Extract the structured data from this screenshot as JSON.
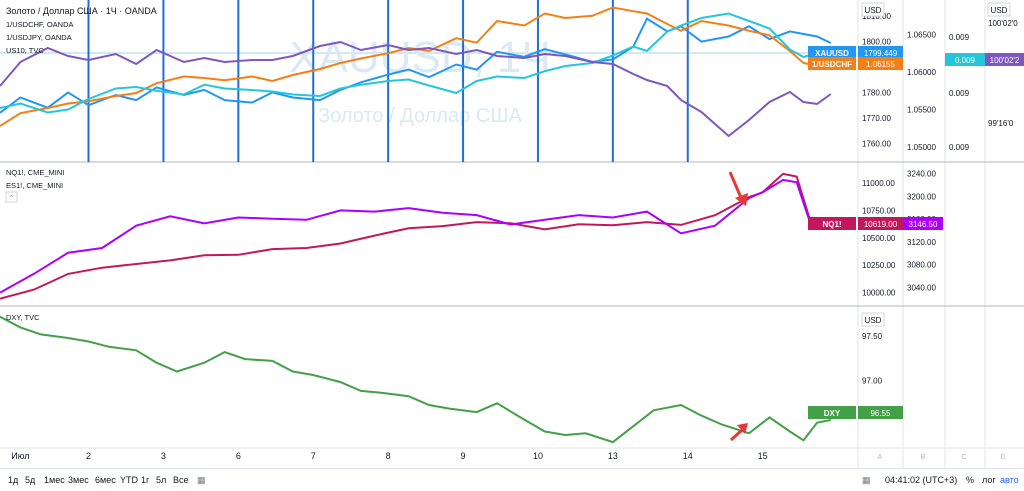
{
  "chart_data": [
    {
      "type": "line",
      "pane": "top",
      "title": "",
      "legend": [
        "Золото / Доллар США · 1Ч · OANDA",
        "1/USDCHF, OANDA",
        "1/USDJPY, OANDA",
        "US10, TVC"
      ],
      "watermark": "XAUUSD, 1Ч",
      "watermark_sub": "Золото / Доллар США",
      "axes": [
        {
          "label": "USD",
          "ticks": [
            "1810.00",
            "1800.00",
            "1790.00",
            "1780.00",
            "1770.00",
            "1760.00"
          ],
          "ylim": [
            1755,
            1814
          ]
        },
        {
          "ticks": [
            "1.06500",
            "1.06000",
            "1.05500",
            "1.05000"
          ],
          "ylim": [
            1.0488,
            1.0688
          ]
        },
        {
          "ticks": [
            "0.009",
            "0.009",
            "0.009"
          ]
        },
        {
          "label": "USD",
          "ticks": [
            "100'02'0",
            "99'16'0"
          ]
        }
      ],
      "series": [
        {
          "name": "Золото / Доллар США",
          "color": "#2196f3",
          "x": [
            0,
            0.3,
            0.7,
            1,
            1.3,
            1.7,
            2,
            2.3,
            2.7,
            3,
            3.3,
            3.7,
            4,
            4.3,
            4.7,
            5,
            5.3,
            5.7,
            6,
            6.3,
            6.7,
            7,
            7.3,
            7.7,
            8,
            8.3,
            8.7,
            9,
            9.3,
            9.5,
            9.8,
            10,
            10.3,
            10.7,
            11,
            11.3,
            11.6,
            11.8,
            12,
            12.2
          ],
          "values": [
            1772,
            1778,
            1774,
            1780,
            1775,
            1779,
            1777,
            1782,
            1779,
            1781,
            1777,
            1776,
            1780,
            1778,
            1777,
            1781,
            1784,
            1787,
            1789,
            1786,
            1791,
            1789,
            1796,
            1794,
            1797,
            1795,
            1792,
            1793,
            1798,
            1809,
            1804,
            1806,
            1800,
            1802,
            1806,
            1801,
            1804,
            1803,
            1802,
            1799.449
          ]
        },
        {
          "name": "1/USDCHF",
          "color": "#f57f17",
          "x": [
            0,
            0.3,
            0.7,
            1,
            1.3,
            1.7,
            2,
            2.3,
            2.7,
            3,
            3.3,
            3.7,
            4,
            4.3,
            4.7,
            5,
            5.3,
            5.7,
            6,
            6.3,
            6.7,
            7,
            7.3,
            7.7,
            8,
            8.3,
            8.7,
            9,
            9.3,
            9.5,
            9.8,
            10,
            10.3,
            10.7,
            11,
            11.3,
            11.6,
            11.8,
            12,
            12.2
          ],
          "values": [
            1.0528,
            1.0545,
            1.0552,
            1.0558,
            1.0561,
            1.0568,
            1.0572,
            1.0585,
            1.0594,
            1.0592,
            1.0589,
            1.0594,
            1.0588,
            1.0596,
            1.0604,
            1.0612,
            1.0618,
            1.0625,
            1.0632,
            1.0628,
            1.0645,
            1.0639,
            1.0668,
            1.0662,
            1.0678,
            1.0672,
            1.0675,
            1.0686,
            1.0681,
            1.0678,
            1.0664,
            1.0655,
            1.0668,
            1.0662,
            1.0655,
            1.0649,
            1.0628,
            1.0612,
            1.0608,
            1.06155
          ]
        },
        {
          "name": "1/USDJPY",
          "color": "#26c6da",
          "x": [
            0,
            0.3,
            0.7,
            1,
            1.3,
            1.7,
            2,
            2.3,
            2.7,
            3,
            3.3,
            3.7,
            4,
            4.3,
            4.7,
            5,
            5.3,
            5.7,
            6,
            6.3,
            6.7,
            7,
            7.3,
            7.7,
            8,
            8.3,
            8.7,
            9,
            9.3,
            9.5,
            9.8,
            10,
            10.3,
            10.7,
            11,
            11.3,
            11.6,
            11.8,
            12,
            12.2
          ],
          "values": [
            1.0552,
            1.0558,
            1.0546,
            1.055,
            1.0564,
            1.0578,
            1.058,
            1.0575,
            1.057,
            1.0583,
            1.0578,
            1.0576,
            1.0574,
            1.057,
            1.0568,
            1.0578,
            1.0583,
            1.0588,
            1.059,
            1.0582,
            1.0572,
            1.0588,
            1.0594,
            1.0592,
            1.0601,
            1.0608,
            1.0612,
            1.0622,
            1.0634,
            1.0628,
            1.0654,
            1.0662,
            1.0672,
            1.0678,
            1.0668,
            1.0658,
            1.063,
            1.062,
            1.0625,
            1.0626
          ]
        },
        {
          "name": "US10",
          "color": "#7e57c2",
          "x": [
            0,
            0.3,
            0.7,
            1,
            1.3,
            1.7,
            2,
            2.3,
            2.7,
            3,
            3.3,
            3.7,
            4,
            4.3,
            4.7,
            5,
            5.3,
            5.7,
            6,
            6.3,
            6.7,
            7,
            7.3,
            7.7,
            8,
            8.3,
            8.7,
            9,
            9.3,
            9.5,
            9.8,
            10,
            10.3,
            10.7,
            11,
            11.3,
            11.6,
            11.8,
            12,
            12.2
          ],
          "values": [
            0.46,
            0.22,
            0.08,
            0.16,
            0.2,
            0.14,
            0.24,
            0.1,
            0.22,
            0.18,
            0.22,
            0.2,
            0.2,
            0.16,
            0.06,
            0.02,
            0.1,
            0.05,
            0.1,
            0.08,
            0.14,
            0.1,
            0.16,
            0.18,
            0.14,
            0.16,
            0.22,
            0.24,
            0.34,
            0.4,
            0.46,
            0.6,
            0.72,
            0.96,
            0.8,
            0.62,
            0.52,
            0.62,
            0.64,
            0.54
          ]
        }
      ],
      "price_labels": [
        {
          "name": "XAUUSD",
          "value": "1799.449",
          "color": "#2196f3"
        },
        {
          "name": "1/USDCHF",
          "value": "1.06155",
          "color": "#f57f17"
        },
        {
          "name": "",
          "value": "0.009",
          "color": "#26c6da"
        },
        {
          "name": "",
          "value": "100'02'2",
          "color": "#7e57c2"
        }
      ]
    },
    {
      "type": "line",
      "pane": "middle",
      "legend": [
        "NQ1!, CME_MINI",
        "ES1!, CME_MINI"
      ],
      "axes": [
        {
          "ticks": [
            "11000.00",
            "10750.00",
            "10500.00",
            "10250.00",
            "10000.00"
          ],
          "ylim": [
            9930,
            11130
          ]
        },
        {
          "ticks": [
            "3240.00",
            "3200.00",
            "3160.00",
            "3120.00",
            "3080.00",
            "3040.00"
          ],
          "ylim": [
            3018,
            3248
          ]
        }
      ],
      "series": [
        {
          "name": "NQ1!",
          "color": "#c2185b",
          "axis": 0,
          "x": [
            0,
            0.5,
            1,
            1.5,
            2,
            2.5,
            3,
            3.5,
            4,
            4.5,
            5,
            5.5,
            6,
            6.5,
            7,
            7.5,
            8,
            8.5,
            9,
            9.5,
            10,
            10.5,
            11,
            11.2,
            11.5,
            11.7,
            11.9,
            12,
            12.2
          ],
          "values": [
            9960,
            10040,
            10180,
            10235,
            10268,
            10300,
            10345,
            10350,
            10400,
            10410,
            10450,
            10520,
            10585,
            10605,
            10640,
            10630,
            10575,
            10622,
            10612,
            10640,
            10615,
            10702,
            10862,
            10905,
            11070,
            11045,
            10650,
            10635,
            10619
          ]
        },
        {
          "name": "ES1!",
          "color": "#aa00ff",
          "axis": 1,
          "x": [
            0,
            0.5,
            1,
            1.5,
            2,
            2.5,
            3,
            3.5,
            4,
            4.5,
            5,
            5.5,
            6,
            6.5,
            7,
            7.5,
            8,
            8.5,
            9,
            9.5,
            10,
            10.5,
            11,
            11.2,
            11.5,
            11.7,
            11.9,
            12,
            12.2
          ],
          "values": [
            3034,
            3066,
            3102,
            3110,
            3148,
            3164,
            3152,
            3162,
            3160,
            3158,
            3174,
            3172,
            3178,
            3170,
            3166,
            3150,
            3158,
            3166,
            3162,
            3172,
            3135,
            3148,
            3195,
            3205,
            3226,
            3222,
            3152,
            3144,
            3146.5
          ]
        }
      ],
      "price_labels": [
        {
          "name": "NQ1!",
          "value": "10619.00",
          "color": "#c2185b"
        },
        {
          "name": "",
          "value": "3146.50",
          "color": "#aa00ff"
        }
      ]
    },
    {
      "type": "line",
      "pane": "bottom",
      "legend": [
        "DXY, TVC"
      ],
      "axes": [
        {
          "label": "USD",
          "ticks": [
            "97.50",
            "97.00"
          ],
          "ylim": [
            96.12,
            97.74
          ]
        }
      ],
      "series": [
        {
          "name": "DXY",
          "color": "#43a047",
          "x": [
            0,
            0.3,
            0.6,
            1,
            1.3,
            1.6,
            2,
            2.3,
            2.6,
            3,
            3.3,
            3.6,
            4,
            4.3,
            4.6,
            5,
            5.3,
            5.6,
            6,
            6.3,
            6.6,
            7,
            7.3,
            7.6,
            8,
            8.3,
            8.6,
            9,
            9.3,
            9.6,
            10,
            10.3,
            10.6,
            11,
            11.3,
            11.6,
            11.8,
            12,
            12.2
          ],
          "values": [
            97.72,
            97.6,
            97.52,
            97.48,
            97.44,
            97.38,
            97.34,
            97.2,
            97.1,
            97.2,
            97.32,
            97.24,
            97.22,
            97.1,
            97.06,
            96.98,
            96.88,
            96.86,
            96.82,
            96.72,
            96.68,
            96.64,
            96.74,
            96.6,
            96.42,
            96.38,
            96.4,
            96.3,
            96.48,
            96.66,
            96.72,
            96.6,
            96.5,
            96.4,
            96.58,
            96.42,
            96.32,
            96.52,
            96.55
          ]
        }
      ],
      "price_labels": [
        {
          "name": "DXY",
          "value": "96.55",
          "color": "#43a047"
        }
      ]
    }
  ],
  "xaxis": {
    "ticks": [
      {
        "label": "Июл",
        "x": 0.3
      },
      {
        "label": "2",
        "x": 1.3
      },
      {
        "label": "3",
        "x": 2.4
      },
      {
        "label": "6",
        "x": 3.5
      },
      {
        "label": "7",
        "x": 4.6
      },
      {
        "label": "8",
        "x": 5.7
      },
      {
        "label": "9",
        "x": 6.8
      },
      {
        "label": "10",
        "x": 7.9
      },
      {
        "label": "13",
        "x": 9.0
      },
      {
        "label": "14",
        "x": 10.1
      },
      {
        "label": "15",
        "x": 11.2
      }
    ]
  },
  "vlines_x": [
    1.3,
    2.4,
    3.5,
    4.6,
    5.7,
    6.8,
    7.9,
    9.0,
    10.1
  ],
  "scale_columns": [
    "A",
    "B",
    "C",
    "D"
  ],
  "timeframes": [
    "1д",
    "5д",
    "1мес",
    "3мес",
    "6мес",
    "YTD",
    "1г",
    "5л",
    "Все"
  ],
  "clock": "04:41:02 (UTC+3)",
  "scale_buttons": [
    "%",
    "лог",
    "авто"
  ],
  "colors": {
    "grid": "#e0e3eb",
    "vline": "#1e6fd9",
    "arrow": "#e53935",
    "hline": "#bfe3ef"
  }
}
